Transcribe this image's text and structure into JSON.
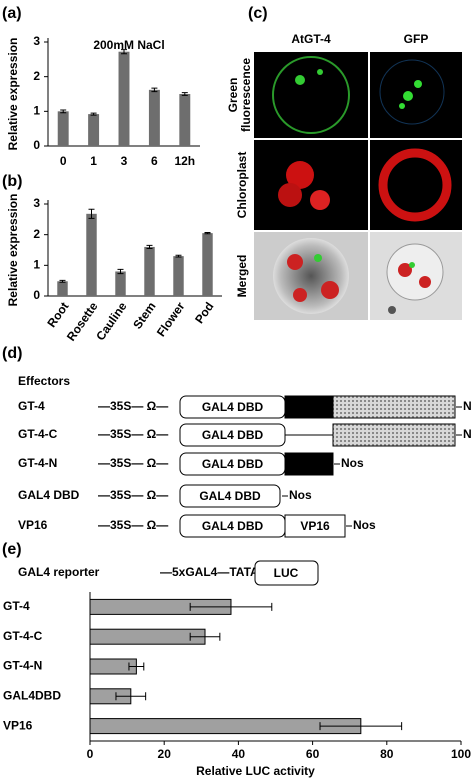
{
  "panel_labels": [
    "(a)",
    "(b)",
    "(c)",
    "(d)",
    "(e)"
  ],
  "chart_data": [
    {
      "type": "bar",
      "title": "200mM NaCl",
      "y_label": "Relative expression",
      "categories": [
        "0",
        "1",
        "3",
        "6",
        "12h"
      ],
      "values": [
        1.0,
        0.92,
        2.72,
        1.62,
        1.5
      ],
      "errors": [
        0.04,
        0.03,
        0.06,
        0.05,
        0.04
      ],
      "color": "#6e6e6e",
      "ylim": [
        0,
        3
      ],
      "yticks": [
        0,
        1,
        2,
        3
      ]
    },
    {
      "type": "bar",
      "y_label": "Relative expression",
      "categories": [
        "Root",
        "Rosette",
        "Cauline",
        "Stem",
        "Flower",
        "Pod"
      ],
      "values": [
        0.48,
        2.68,
        0.8,
        1.6,
        1.3,
        2.05
      ],
      "errors": [
        0.03,
        0.15,
        0.07,
        0.05,
        0.03,
        0.02
      ],
      "color": "#6e6e6e",
      "ylim": [
        0,
        3
      ],
      "yticks": [
        0,
        1,
        2,
        3
      ]
    },
    {
      "type": "hbar",
      "x_label": "Relative LUC activity",
      "categories": [
        "GT-4",
        "GT-4-C",
        "GT-4-N",
        "GAL4DBD",
        "VP16"
      ],
      "values": [
        38,
        31,
        12.5,
        11,
        73
      ],
      "errors": [
        11,
        4,
        2,
        4,
        11
      ],
      "color": "#a0a0a0",
      "xlim": [
        0,
        100
      ],
      "xticks": [
        0,
        20,
        40,
        60,
        80,
        100
      ]
    }
  ],
  "microscopy": {
    "columns": [
      "AtGT-4",
      "GFP"
    ],
    "rows": [
      [
        "Green",
        "fluorescence"
      ],
      [
        "Chloroplast"
      ],
      [
        "Merged"
      ]
    ]
  },
  "constructs": {
    "title": "Effectors",
    "rows": [
      {
        "name": "GT-4",
        "promoter": "—35S— Ω—",
        "boxes": [
          "GAL4 DBD"
        ],
        "terminator": "Nos"
      },
      {
        "name": "GT-4-C",
        "promoter": "—35S— Ω—",
        "boxes": [
          "GAL4 DBD"
        ],
        "terminator": "Nos"
      },
      {
        "name": "GT-4-N",
        "promoter": "—35S— Ω—",
        "boxes": [
          "GAL4 DBD"
        ],
        "terminator": "Nos"
      },
      {
        "name": "GAL4 DBD",
        "promoter": "—35S— Ω—",
        "boxes": [
          "GAL4 DBD"
        ],
        "terminator": "Nos"
      },
      {
        "name": "VP16",
        "promoter": "—35S— Ω—",
        "boxes": [
          "GAL4 DBD",
          "VP16"
        ],
        "terminator": "Nos"
      }
    ],
    "reporter": {
      "name": "GAL4 reporter",
      "promoter": "—5xGAL4—TATA—",
      "gene": "LUC"
    }
  }
}
